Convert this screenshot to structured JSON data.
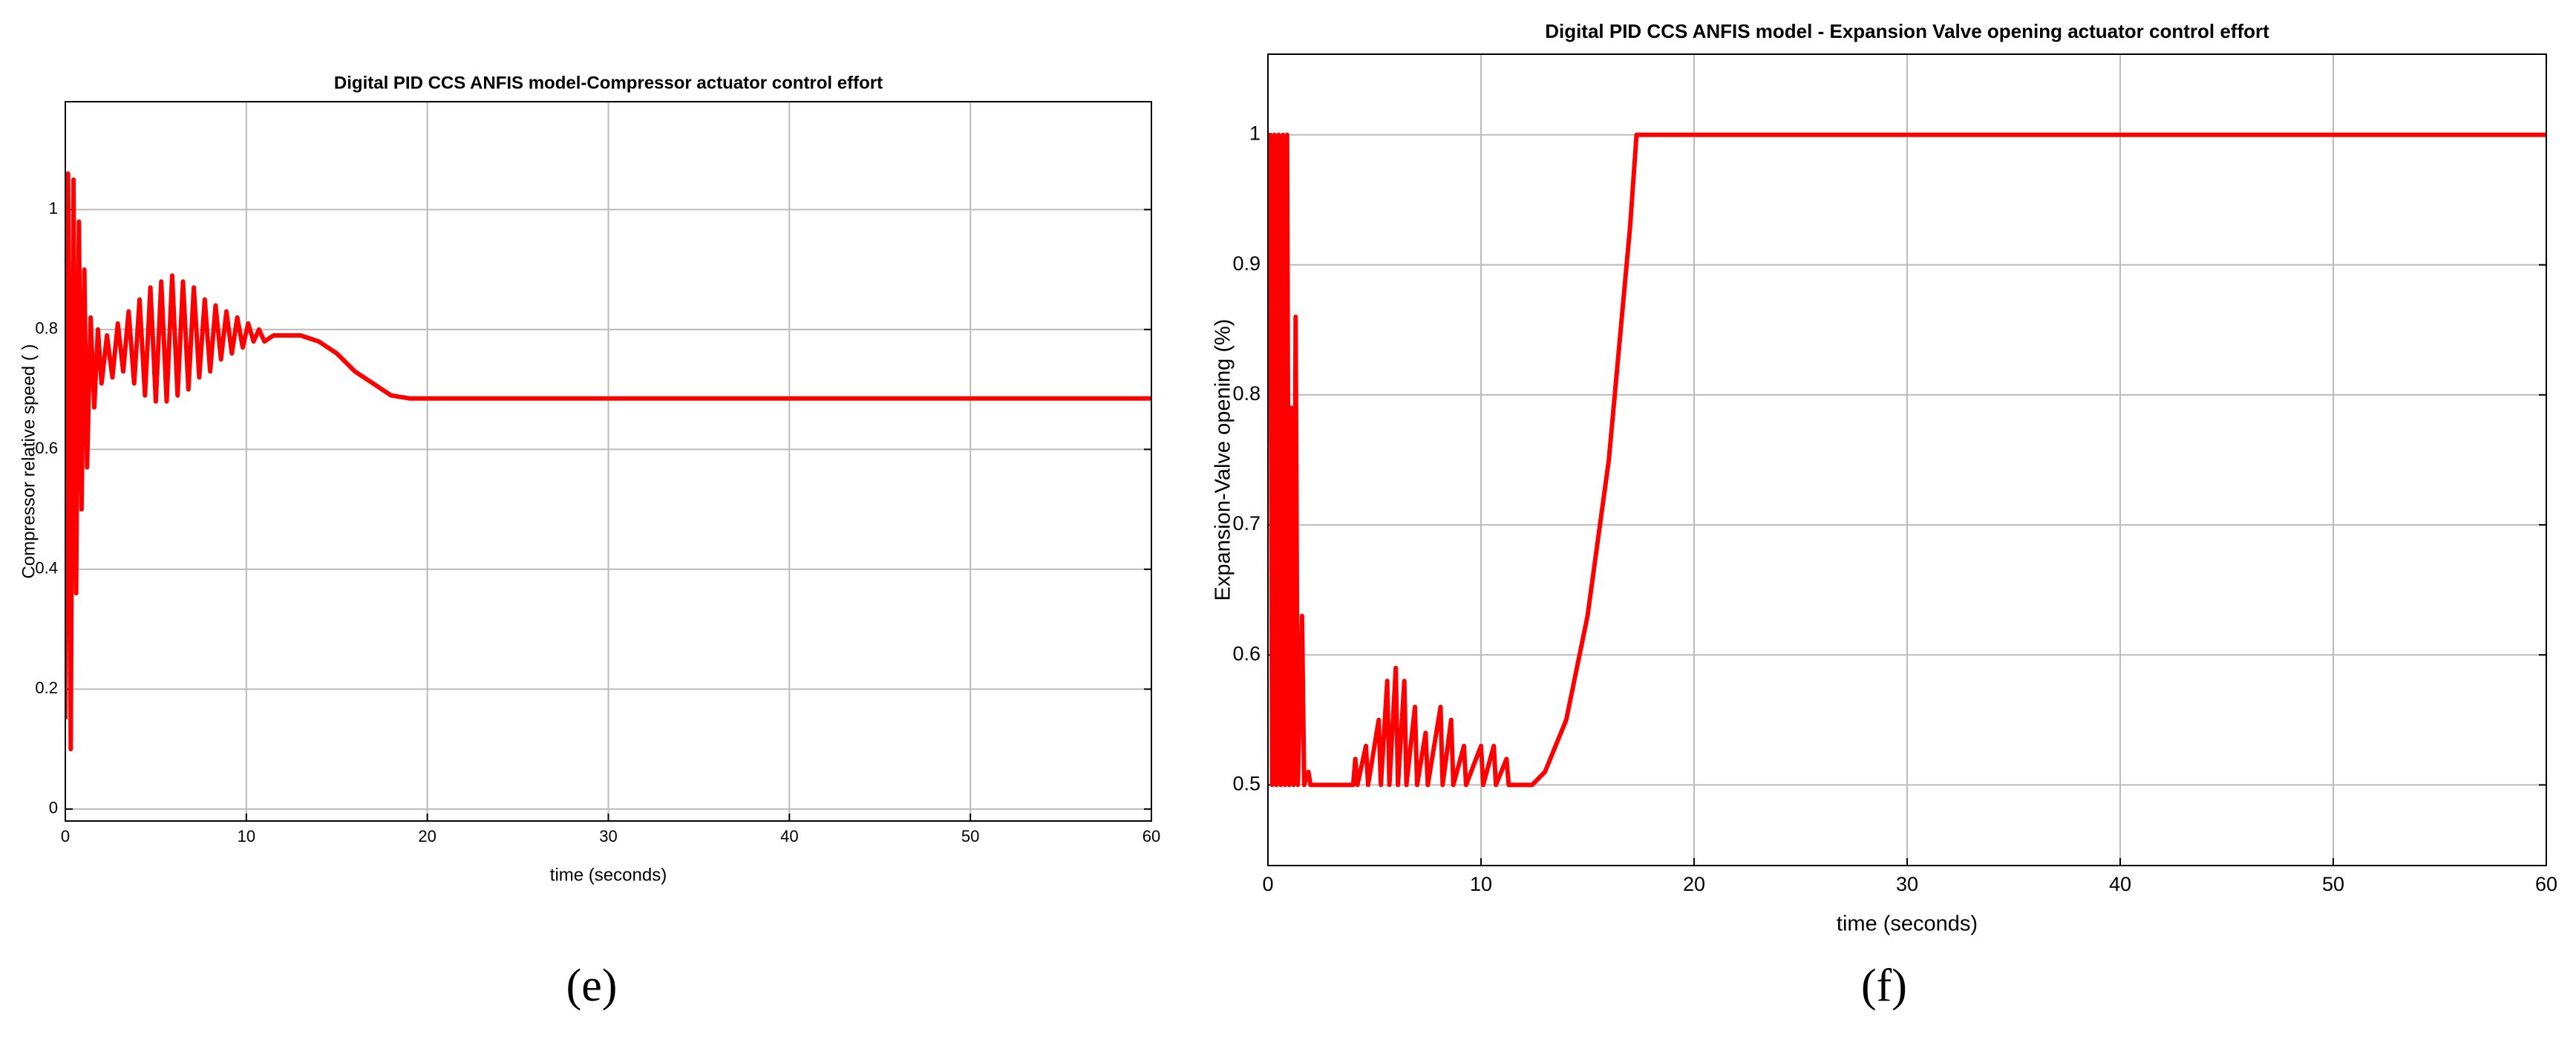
{
  "chart_data": [
    {
      "type": "line",
      "title": "Digital PID  CCS  ANFIS model-Compressor  actuator control effort",
      "xlabel": "time (seconds)",
      "ylabel": "Compressor relative speed ( )",
      "caption": "(e)",
      "xlim": [
        0,
        60
      ],
      "xticks": [
        0,
        10,
        20,
        30,
        40,
        50,
        60
      ],
      "ylim": [
        -0.02,
        1.18
      ],
      "yticks": [
        0,
        0.2,
        0.4,
        0.6,
        0.8,
        1
      ],
      "grid": true,
      "series": [
        {
          "color": "#ff0000",
          "x": [
            0,
            0.15,
            0.3,
            0.45,
            0.6,
            0.75,
            0.9,
            1.05,
            1.2,
            1.4,
            1.6,
            1.8,
            2.0,
            2.3,
            2.6,
            2.9,
            3.2,
            3.5,
            3.8,
            4.1,
            4.4,
            4.7,
            5.0,
            5.3,
            5.6,
            5.9,
            6.2,
            6.5,
            6.8,
            7.1,
            7.4,
            7.7,
            8.0,
            8.3,
            8.6,
            8.9,
            9.2,
            9.5,
            9.8,
            10.1,
            10.4,
            10.7,
            11.0,
            11.5,
            12,
            13,
            14,
            15,
            16,
            17,
            17.5,
            18,
            19,
            20,
            60
          ],
          "values": [
            0.15,
            1.06,
            0.1,
            1.05,
            0.36,
            0.98,
            0.5,
            0.9,
            0.57,
            0.82,
            0.67,
            0.8,
            0.71,
            0.79,
            0.72,
            0.81,
            0.73,
            0.83,
            0.71,
            0.85,
            0.69,
            0.87,
            0.68,
            0.88,
            0.68,
            0.89,
            0.69,
            0.88,
            0.7,
            0.87,
            0.72,
            0.85,
            0.73,
            0.84,
            0.75,
            0.83,
            0.76,
            0.82,
            0.77,
            0.81,
            0.78,
            0.8,
            0.78,
            0.79,
            0.79,
            0.79,
            0.78,
            0.76,
            0.73,
            0.71,
            0.7,
            0.69,
            0.685,
            0.685,
            0.685
          ]
        }
      ]
    },
    {
      "type": "line",
      "title": "Digital PID CCS ANFIS model - Expansion Valve opening actuator control effort",
      "xlabel": "time (seconds)",
      "ylabel": "Expansion-Valve opening (%)",
      "caption": "(f)",
      "xlim": [
        0,
        60
      ],
      "xticks": [
        0,
        10,
        20,
        30,
        40,
        50,
        60
      ],
      "ylim": [
        0.438,
        1.062
      ],
      "yticks": [
        0.5,
        0.6,
        0.7,
        0.8,
        0.9,
        1
      ],
      "grid": true,
      "series": [
        {
          "color": "#ff0000",
          "x": [
            0,
            0.1,
            0.2,
            0.3,
            0.4,
            0.5,
            0.6,
            0.7,
            0.8,
            0.9,
            1.0,
            1.1,
            1.2,
            1.3,
            1.4,
            1.6,
            1.7,
            1.9,
            2.0,
            4.0,
            4.1,
            4.2,
            4.6,
            4.7,
            5.2,
            5.3,
            5.6,
            5.7,
            6.0,
            6.1,
            6.4,
            6.5,
            6.9,
            7.0,
            7.4,
            7.5,
            8.1,
            8.2,
            8.6,
            8.7,
            9.2,
            9.3,
            10.0,
            10.1,
            10.6,
            10.7,
            11.2,
            11.3,
            12.4,
            13,
            14,
            15,
            16,
            17,
            17.3,
            60
          ],
          "values": [
            0.87,
            1.0,
            0.5,
            1.0,
            0.5,
            1.0,
            0.5,
            1.0,
            0.5,
            1.0,
            0.5,
            0.79,
            0.5,
            0.86,
            0.5,
            0.63,
            0.5,
            0.51,
            0.5,
            0.5,
            0.52,
            0.5,
            0.53,
            0.5,
            0.55,
            0.5,
            0.58,
            0.5,
            0.59,
            0.5,
            0.58,
            0.5,
            0.56,
            0.5,
            0.54,
            0.5,
            0.56,
            0.5,
            0.55,
            0.5,
            0.53,
            0.5,
            0.53,
            0.5,
            0.53,
            0.5,
            0.52,
            0.5,
            0.5,
            0.51,
            0.55,
            0.63,
            0.75,
            0.93,
            1.0,
            1.0
          ]
        }
      ]
    }
  ]
}
